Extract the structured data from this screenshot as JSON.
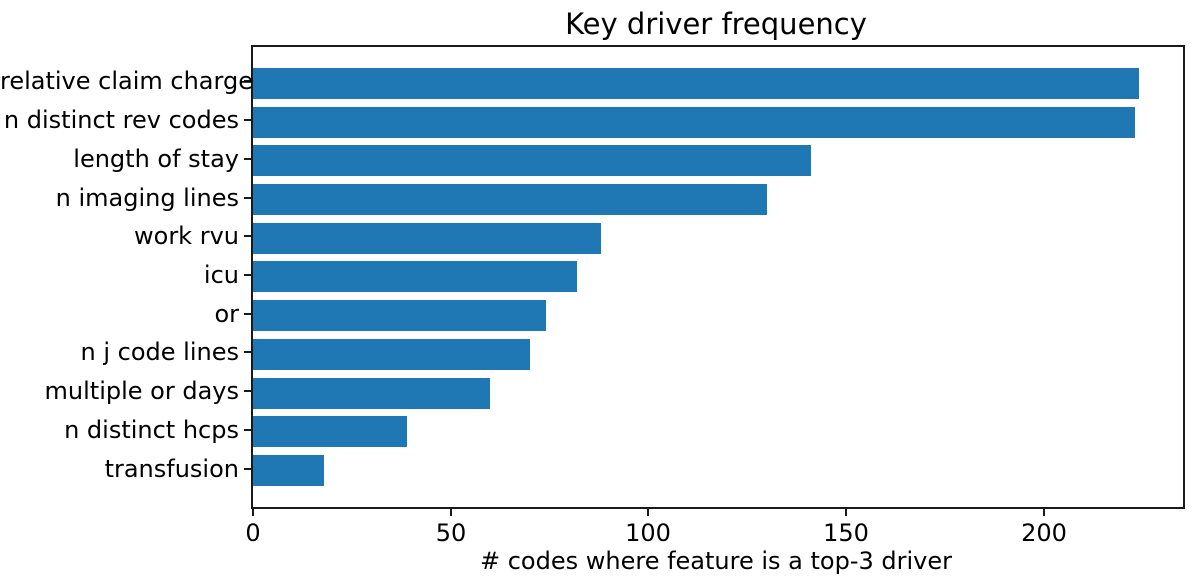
{
  "chart_data": {
    "type": "bar",
    "orientation": "horizontal",
    "title": "Key driver frequency",
    "xlabel": "# codes where feature is a top-3 driver",
    "ylabel": "",
    "categories": [
      "relative claim charge",
      "n distinct rev codes",
      "length of stay",
      "n imaging lines",
      "work rvu",
      "icu",
      "or",
      "n j code lines",
      "multiple or days",
      "n distinct hcps",
      "transfusion"
    ],
    "values": [
      224,
      223,
      141,
      130,
      88,
      82,
      74,
      70,
      60,
      39,
      18
    ],
    "xlim": [
      0,
      235.2
    ],
    "xticks": [
      0,
      50,
      100,
      150,
      200
    ],
    "bar_color": "#1f77b4",
    "spine_color": "#1a1a1a",
    "text_color": "#000000",
    "grid": false,
    "legend": null,
    "background": "#ffffff"
  }
}
